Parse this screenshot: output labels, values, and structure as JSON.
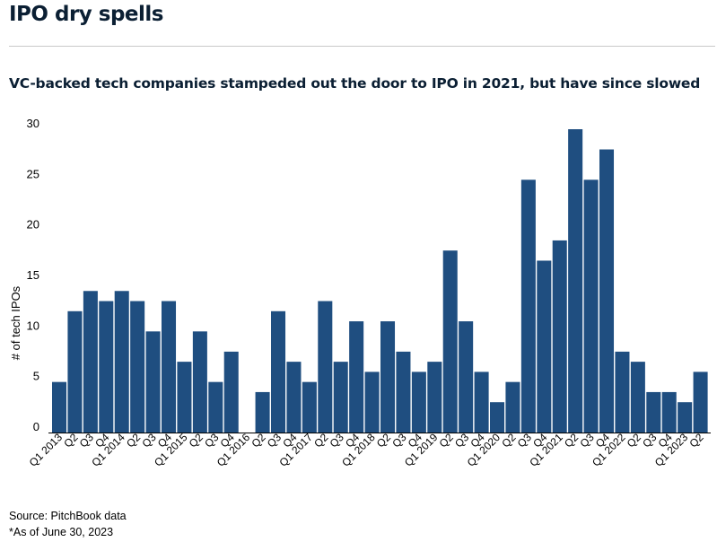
{
  "header": {
    "title": "IPO dry spells",
    "subtitle": "VC-backed tech companies stampeded out the door to IPO in 2021, but have since slowed"
  },
  "footer": {
    "source": "Source: PitchBook data",
    "note": "*As of June 30, 2023"
  },
  "colors": {
    "bar": "#1f4e80",
    "title": "#0b1f33",
    "axis": "#000000"
  },
  "chart_data": {
    "type": "bar",
    "title": "",
    "xlabel": "",
    "ylabel": "# of tech IPOs",
    "ylim": [
      0,
      30
    ],
    "yticks": [
      0,
      5,
      10,
      15,
      20,
      25,
      30
    ],
    "grid": false,
    "legend": "none",
    "categories": [
      "Q1 2013",
      "Q2",
      "Q3",
      "Q4",
      "Q1 2014",
      "Q2",
      "Q3",
      "Q4",
      "Q1 2015",
      "Q2",
      "Q3",
      "Q4",
      "Q1 2016",
      "Q2",
      "Q3",
      "Q4",
      "Q1 2017",
      "Q2",
      "Q3",
      "Q4",
      "Q1 2018",
      "Q2",
      "Q3",
      "Q4",
      "Q1 2019",
      "Q2",
      "Q3",
      "Q4",
      "Q1 2020",
      "Q2",
      "Q3",
      "Q4",
      "Q1 2021",
      "Q2",
      "Q3",
      "Q4",
      "Q1 2022",
      "Q2",
      "Q3",
      "Q4",
      "Q1 2023",
      "Q2"
    ],
    "values": [
      5,
      12,
      14,
      13,
      14,
      13,
      10,
      13,
      7,
      10,
      5,
      8,
      0,
      4,
      12,
      7,
      5,
      13,
      7,
      11,
      6,
      11,
      8,
      6,
      7,
      18,
      11,
      6,
      3,
      5,
      25,
      17,
      19,
      30,
      25,
      28,
      8,
      7,
      4,
      4,
      3,
      6
    ]
  }
}
